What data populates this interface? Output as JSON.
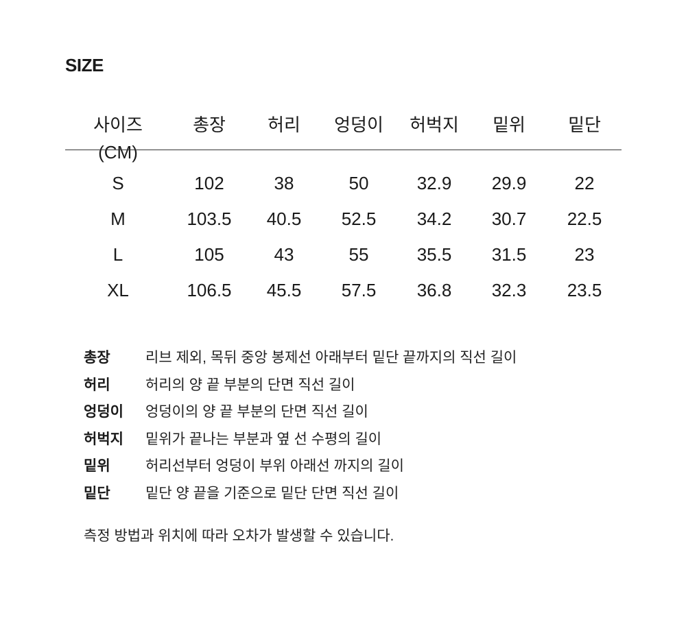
{
  "title": "SIZE",
  "table": {
    "headers": [
      "사이즈(CM)",
      "총장",
      "허리",
      "엉덩이",
      "허벅지",
      "밑위",
      "밑단"
    ],
    "rows": [
      [
        "S",
        "102",
        "38",
        "50",
        "32.9",
        "29.9",
        "22"
      ],
      [
        "M",
        "103.5",
        "40.5",
        "52.5",
        "34.2",
        "30.7",
        "22.5"
      ],
      [
        "L",
        "105",
        "43",
        "55",
        "35.5",
        "31.5",
        "23"
      ],
      [
        "XL",
        "106.5",
        "45.5",
        "57.5",
        "36.8",
        "32.3",
        "23.5"
      ]
    ]
  },
  "definitions": [
    {
      "term": "총장",
      "desc": "리브 제외, 목뒤 중앙 봉제선 아래부터 밑단 끝까지의 직선 길이"
    },
    {
      "term": "허리",
      "desc": "허리의 양 끝 부분의 단면 직선 길이"
    },
    {
      "term": "엉덩이",
      "desc": "엉덩이의 양 끝 부분의 단면 직선 길이"
    },
    {
      "term": "허벅지",
      "desc": "밑위가 끝나는 부분과 옆 선 수평의 길이"
    },
    {
      "term": "밑위",
      "desc": "허리선부터 엉덩이 부위 아래선 까지의 길이"
    },
    {
      "term": "밑단",
      "desc": "밑단 양 끝을 기준으로 밑단 단면 직선 길이"
    }
  ],
  "note": "측정 방법과 위치에 따라 오차가 발생할 수 있습니다."
}
